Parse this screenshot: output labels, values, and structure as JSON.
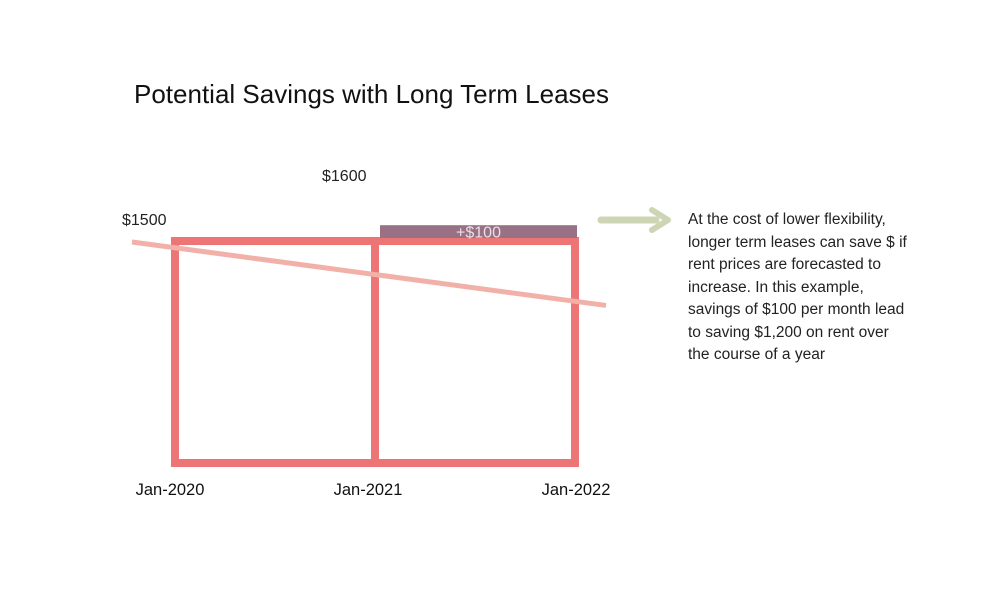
{
  "title": "Potential Savings with Long Term Leases",
  "chart_data": {
    "type": "bar",
    "x_ticks": [
      "Jan-2020",
      "Jan-2021",
      "Jan-2022"
    ],
    "periods": [
      {
        "start": "Jan-2020",
        "end": "Jan-2021",
        "rent": 1500
      },
      {
        "start": "Jan-2021",
        "end": "Jan-2022",
        "rent": 1500
      }
    ],
    "savings_bar": {
      "start": "Jan-2021",
      "end": "Jan-2022",
      "value": 100,
      "label": "+$100"
    },
    "trend_line": {
      "points": [
        {
          "x": "Jan-2020",
          "y": 1500
        },
        {
          "x": "Jan-2021",
          "y": 1600
        }
      ]
    },
    "annotations": [
      "$1500",
      "$1600"
    ],
    "colors": {
      "box": "#ee7575",
      "savings": "#987184",
      "trend": "#f2b1a8",
      "arrow": "#cdd5b4"
    }
  },
  "note": {
    "lines": [
      "At the cost of lower flexibility,",
      "longer term leases can save $ if",
      "rent prices are forecasted to",
      "increase. In this example,",
      "savings of $100 per month lead",
      "to saving $1,200 on rent over",
      "the course of a year"
    ],
    "arrow_icon": "right-arrow-icon"
  }
}
